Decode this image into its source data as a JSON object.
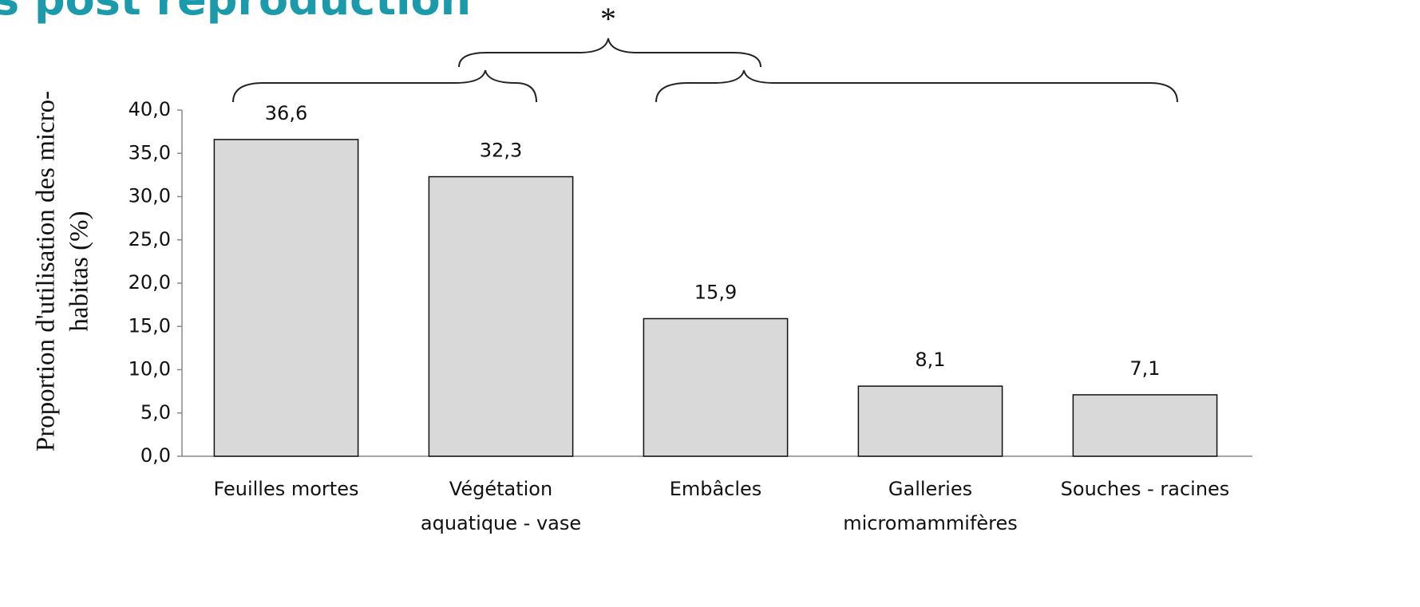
{
  "chart_data": {
    "type": "bar",
    "title": "s post reproduction",
    "y_label": [
      "Proportion d'utilisation des micro-",
      "habitas (%)"
    ],
    "annotation": "*",
    "categories": [
      [
        "Feuilles mortes"
      ],
      [
        "Végétation",
        "aquatique - vase"
      ],
      [
        "Embâcles"
      ],
      [
        "Galleries",
        "micromammifères"
      ],
      [
        "Souches - racines"
      ]
    ],
    "values": [
      36.6,
      32.3,
      15.9,
      8.1,
      7.1
    ],
    "value_labels": [
      "36,6",
      "32,3",
      "15,9",
      "8,1",
      "7,1"
    ],
    "color": "#d9d9d9",
    "ylim": [
      0,
      40
    ],
    "yticks": [
      {
        "value": 0,
        "label": "0,0"
      },
      {
        "value": 5,
        "label": "5,0"
      },
      {
        "value": 10,
        "label": "10,0"
      },
      {
        "value": 15,
        "label": "15,0"
      },
      {
        "value": 20,
        "label": "20,0"
      },
      {
        "value": 25,
        "label": "25,0"
      },
      {
        "value": 30,
        "label": "30,0"
      },
      {
        "value": 35,
        "label": "35,0"
      },
      {
        "value": 40,
        "label": "40,0"
      }
    ],
    "grid": false
  }
}
